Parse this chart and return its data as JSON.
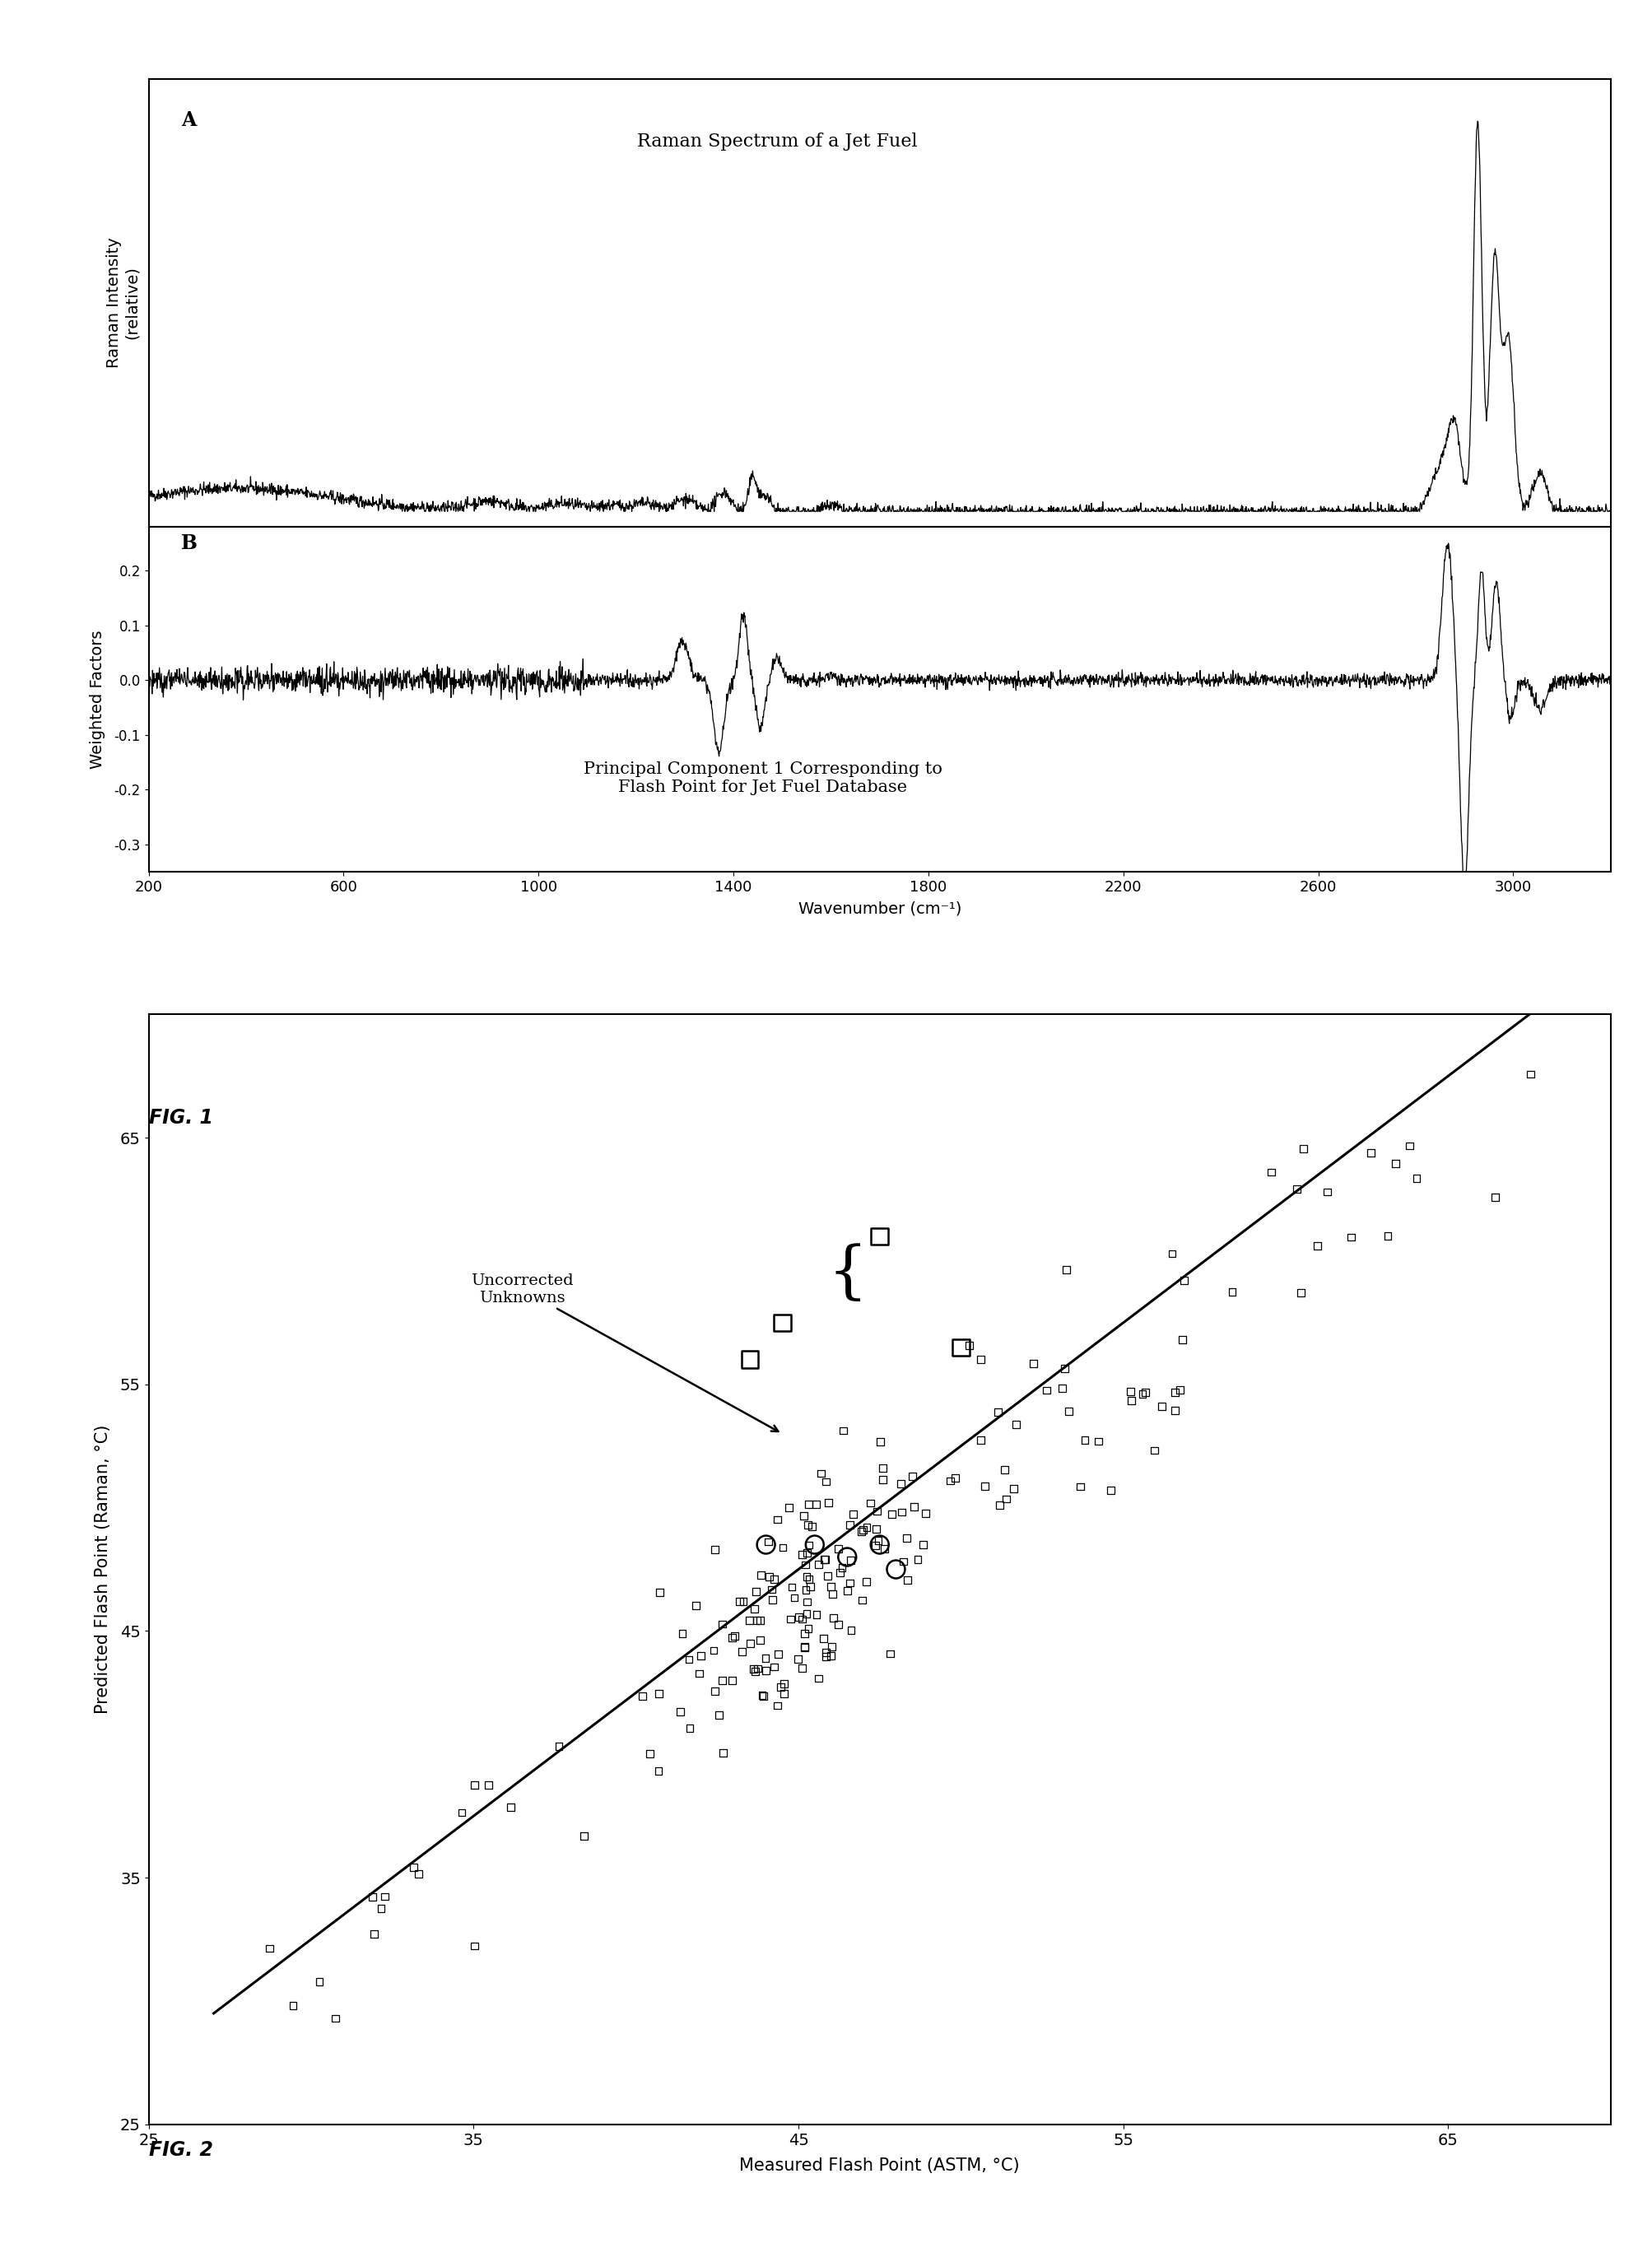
{
  "fig1_title_A": "Raman Spectrum of a Jet Fuel",
  "fig1_title_B": "Principal Component 1 Corresponding to\nFlash Point for Jet Fuel Database",
  "label_A": "A",
  "label_B": "B",
  "ylabel_A": "Raman Intensity\n(relative)",
  "ylabel_B": "Weighted Factors",
  "xlabel_shared": "Wavenumber (cm⁻¹)",
  "xmin": 200,
  "xmax": 3200,
  "xticks": [
    200,
    600,
    1000,
    1400,
    1800,
    2200,
    2600,
    3000
  ],
  "yticks_B": [
    -0.3,
    -0.2,
    -0.1,
    0.0,
    0.1,
    0.2
  ],
  "fig2_xlabel": "Measured Flash Point (ASTM, °C)",
  "fig2_ylabel": "Predicted Flash Point (Raman, °C)",
  "fig2_annotation": "Uncorrected\nUnknowns",
  "fig2_xlim": [
    25,
    70
  ],
  "fig2_ylim": [
    25,
    70
  ],
  "fig2_xticks": [
    25,
    35,
    45,
    55,
    65
  ],
  "fig2_yticks": [
    25,
    35,
    45,
    55,
    65
  ],
  "fig1_label": "FIG. 1",
  "fig2_label": "FIG. 2",
  "background_color": "#ffffff",
  "line_color": "#000000"
}
